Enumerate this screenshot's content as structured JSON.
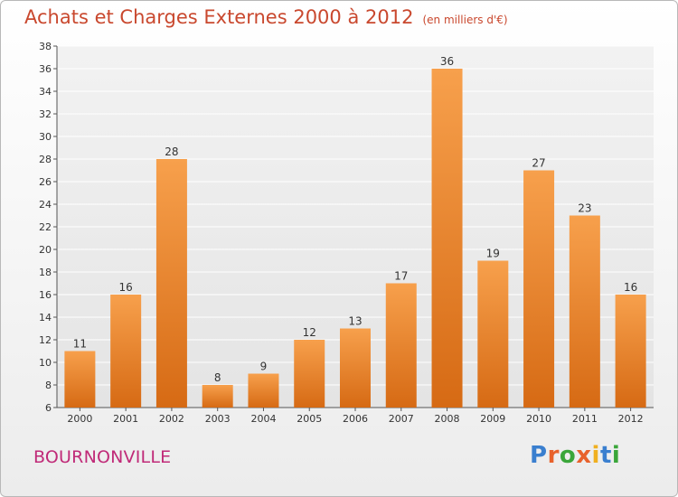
{
  "chart_data": {
    "type": "bar",
    "title": "Achats et Charges Externes 2000 à 2012",
    "subtitle": "(en milliers d'€)",
    "categories": [
      "2000",
      "2001",
      "2002",
      "2003",
      "2004",
      "2005",
      "2006",
      "2007",
      "2008",
      "2009",
      "2010",
      "2011",
      "2012"
    ],
    "values": [
      11,
      16,
      28,
      8,
      9,
      12,
      13,
      17,
      36,
      19,
      27,
      23,
      16
    ],
    "ylim": [
      6,
      38
    ],
    "yticks": [
      6,
      8,
      10,
      12,
      14,
      16,
      18,
      20,
      22,
      24,
      26,
      28,
      30,
      32,
      34,
      36,
      38
    ],
    "grid": true,
    "legend": "none",
    "bar_color_top": "#f7a04c",
    "bar_color_bottom": "#d66a14"
  },
  "location": "BOURNONVILLE",
  "logo": {
    "letters": [
      "P",
      "r",
      "o",
      "x",
      "i",
      "t",
      "i"
    ],
    "colors": [
      "#3a7fcf",
      "#e8622c",
      "#3aa63a",
      "#e8622c",
      "#f0b020",
      "#3a7fcf",
      "#3aa63a"
    ]
  }
}
